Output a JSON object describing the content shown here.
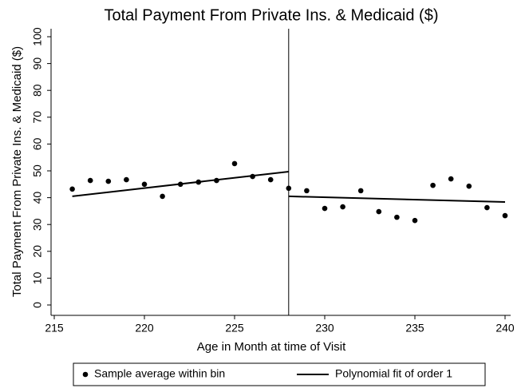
{
  "chart_data": {
    "type": "scatter",
    "title": "Total Payment From Private Ins. & Medicaid ($)",
    "x_label": "Age in Month at time of Visit",
    "y_label": "Total Payment From Private Ins. & Medicaid ($)",
    "x": [
      216,
      217,
      218,
      219,
      220,
      221,
      222,
      223,
      224,
      225,
      226,
      227,
      228,
      229,
      230,
      231,
      232,
      233,
      234,
      235,
      236,
      237,
      238,
      239,
      240
    ],
    "series": [
      {
        "name": "Sample average within bin",
        "color": "#000000",
        "values": [
          43.2,
          46.4,
          46.1,
          46.7,
          45,
          40.5,
          45,
          45.8,
          46.4,
          52.7,
          47.9,
          46.7,
          43.5,
          42.6,
          36,
          36.6,
          42.6,
          34.8,
          32.7,
          31.5,
          44.6,
          47,
          44.3,
          36.3,
          33.3
        ]
      },
      {
        "name": "Polynomial fit of order 1",
        "color": "#000000",
        "type": "line",
        "x": [
          216,
          228,
          228,
          228,
          240
        ],
        "values": [
          40.5,
          49.7,
          null,
          40.5,
          38.4
        ]
      }
    ],
    "cutoff": 228,
    "xlim": [
      215,
      240
    ],
    "xticks": [
      215,
      220,
      225,
      230,
      235,
      240
    ],
    "ylim": [
      0,
      100
    ],
    "yticks": [
      0,
      10,
      20,
      30,
      40,
      50,
      60,
      70,
      80,
      90,
      100
    ],
    "legend": "bottom"
  }
}
